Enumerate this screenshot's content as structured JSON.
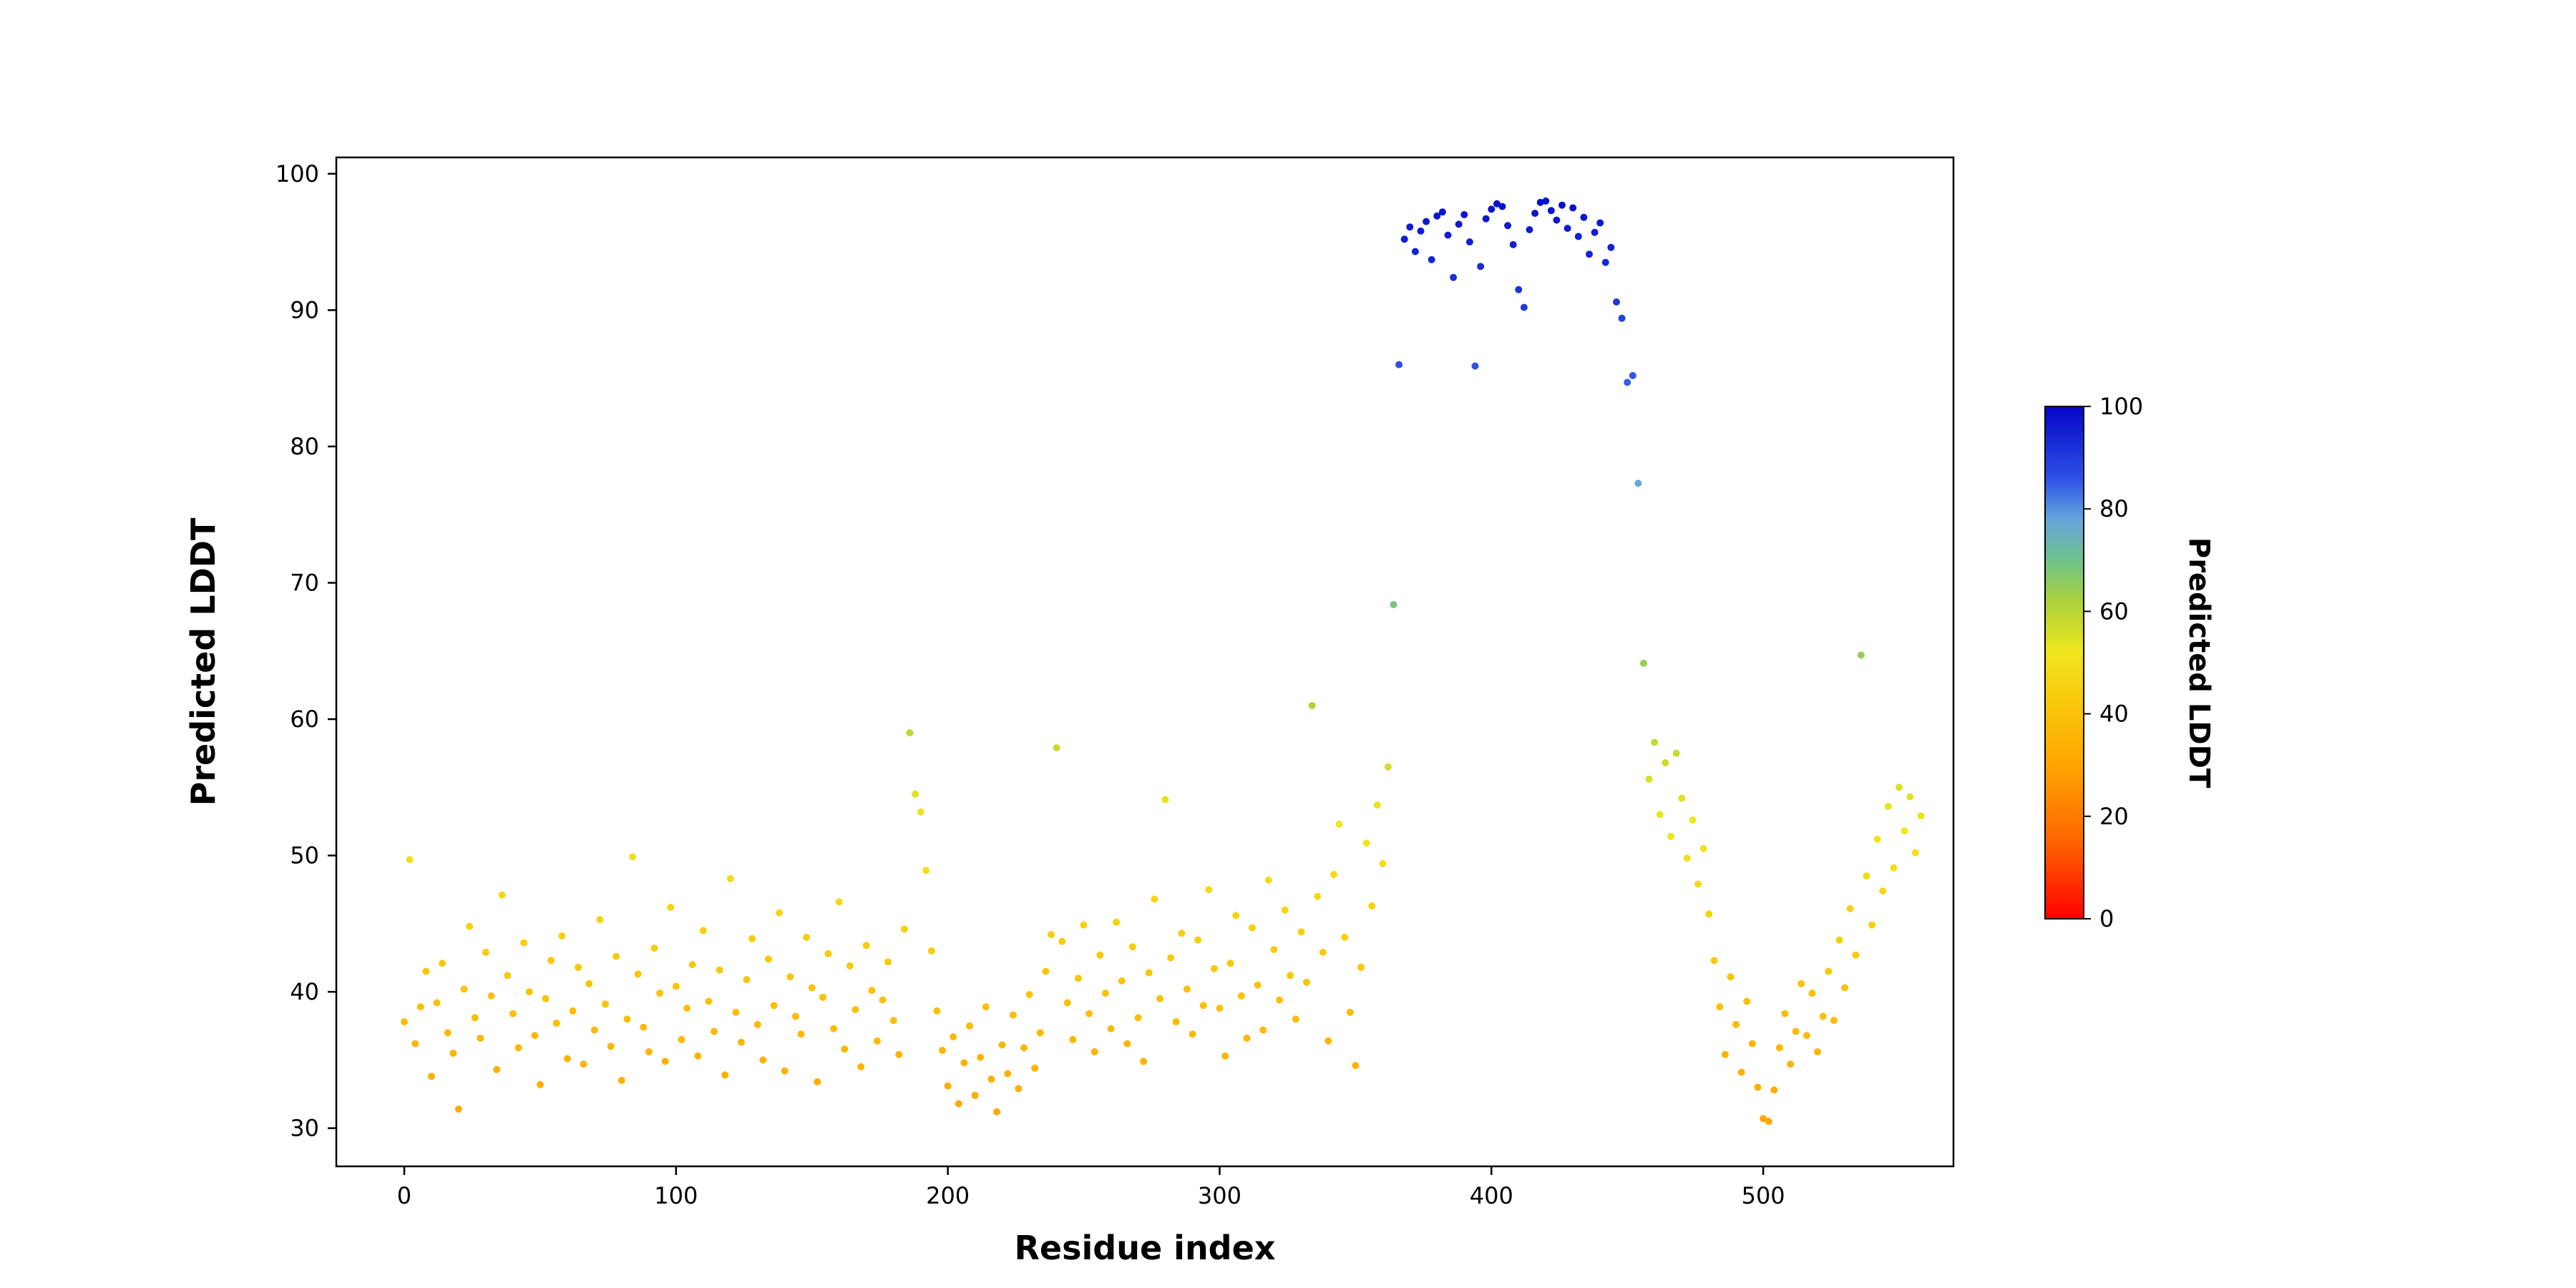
{
  "figure": {
    "xlabel": "Residue index",
    "ylabel": "Predicted LDDT",
    "colorbar_label": "Predicted LDDT"
  },
  "chart_data": {
    "type": "scatter",
    "title": "",
    "xlabel": "Residue index",
    "ylabel": "Predicted LDDT",
    "xlim": [
      -25,
      570
    ],
    "ylim": [
      27.2,
      101.2
    ],
    "xticks": [
      0,
      100,
      200,
      300,
      400,
      500
    ],
    "yticks": [
      30,
      40,
      50,
      60,
      70,
      80,
      90,
      100
    ],
    "grid": false,
    "legend": "none",
    "colorbar": {
      "label": "Predicted LDDT",
      "ticks": [
        0,
        20,
        40,
        60,
        80,
        100
      ],
      "vmin": 0,
      "vmax": 100
    },
    "colormap_stops": [
      [
        0,
        255,
        0,
        0
      ],
      [
        15,
        255,
        100,
        0
      ],
      [
        30,
        255,
        165,
        0
      ],
      [
        42,
        250,
        200,
        10
      ],
      [
        52,
        240,
        230,
        30
      ],
      [
        62,
        170,
        210,
        60
      ],
      [
        70,
        110,
        195,
        140
      ],
      [
        78,
        100,
        165,
        220
      ],
      [
        86,
        45,
        80,
        230
      ],
      [
        100,
        5,
        5,
        200
      ]
    ],
    "color_by": "y",
    "x_start": 0,
    "x_step": 2,
    "y": [
      37.8,
      49.7,
      36.2,
      38.9,
      41.5,
      33.8,
      39.2,
      42.1,
      37.0,
      35.5,
      31.4,
      40.2,
      44.8,
      38.1,
      36.6,
      42.9,
      39.7,
      34.3,
      47.1,
      41.2,
      38.4,
      35.9,
      43.6,
      40.0,
      36.8,
      33.2,
      39.5,
      42.3,
      37.7,
      44.1,
      35.1,
      38.6,
      41.8,
      34.7,
      40.6,
      37.2,
      45.3,
      39.1,
      36.0,
      42.6,
      33.5,
      38.0,
      49.9,
      41.3,
      37.4,
      35.6,
      43.2,
      39.9,
      34.9,
      46.2,
      40.4,
      36.5,
      38.8,
      42.0,
      35.3,
      44.5,
      39.3,
      37.1,
      41.6,
      33.9,
      48.3,
      38.5,
      36.3,
      40.9,
      43.9,
      37.6,
      35.0,
      42.4,
      39.0,
      45.8,
      34.2,
      41.1,
      38.2,
      36.9,
      44.0,
      40.3,
      33.4,
      39.6,
      42.8,
      37.3,
      46.6,
      35.8,
      41.9,
      38.7,
      34.5,
      43.4,
      40.1,
      36.4,
      39.4,
      42.2,
      37.9,
      35.4,
      44.6,
      59.0,
      54.5,
      53.2,
      48.9,
      43.0,
      38.6,
      35.7,
      33.1,
      36.7,
      31.8,
      34.8,
      37.5,
      32.4,
      35.2,
      38.9,
      33.6,
      31.2,
      36.1,
      34.0,
      38.3,
      32.9,
      35.9,
      39.8,
      34.4,
      37.0,
      41.5,
      44.2,
      57.9,
      43.7,
      39.2,
      36.5,
      41.0,
      44.9,
      38.4,
      35.6,
      42.7,
      39.9,
      37.3,
      45.1,
      40.8,
      36.2,
      43.3,
      38.1,
      34.9,
      41.4,
      46.8,
      39.5,
      54.1,
      42.5,
      37.8,
      44.3,
      40.2,
      36.9,
      43.8,
      39.0,
      47.5,
      41.7,
      38.8,
      35.3,
      42.1,
      45.6,
      39.7,
      36.6,
      44.7,
      40.5,
      37.2,
      48.2,
      43.1,
      39.4,
      46.0,
      41.2,
      38.0,
      44.4,
      40.7,
      61.0,
      47.0,
      42.9,
      36.4,
      48.6,
      52.3,
      44.0,
      38.5,
      34.6,
      41.8,
      50.9,
      46.3,
      53.7,
      49.4,
      56.5,
      68.4,
      86.0,
      95.2,
      96.1,
      94.3,
      95.8,
      96.5,
      93.7,
      96.9,
      97.2,
      95.5,
      92.4,
      96.3,
      97.0,
      95.0,
      85.9,
      93.2,
      96.7,
      97.4,
      97.8,
      97.6,
      96.2,
      94.8,
      91.5,
      90.2,
      95.9,
      97.1,
      97.9,
      98.0,
      97.3,
      96.6,
      97.7,
      96.0,
      97.5,
      95.4,
      96.8,
      94.1,
      95.7,
      96.4,
      93.5,
      94.6,
      90.6,
      89.4,
      84.7,
      85.2,
      77.3,
      64.1,
      55.6,
      58.3,
      53.0,
      56.8,
      51.4,
      57.5,
      54.2,
      49.8,
      52.6,
      47.9,
      50.5,
      45.7,
      42.3,
      38.9,
      35.4,
      41.1,
      37.6,
      34.1,
      39.3,
      36.2,
      33.0,
      30.7,
      30.5,
      32.8,
      35.9,
      38.4,
      34.7,
      37.1,
      40.6,
      36.8,
      39.9,
      35.6,
      38.2,
      41.5,
      37.9,
      43.8,
      40.3,
      46.1,
      42.7,
      64.7,
      48.5,
      44.9,
      51.2,
      47.4,
      53.6,
      49.1,
      55.0,
      51.8,
      54.3,
      50.2,
      52.9
    ]
  }
}
